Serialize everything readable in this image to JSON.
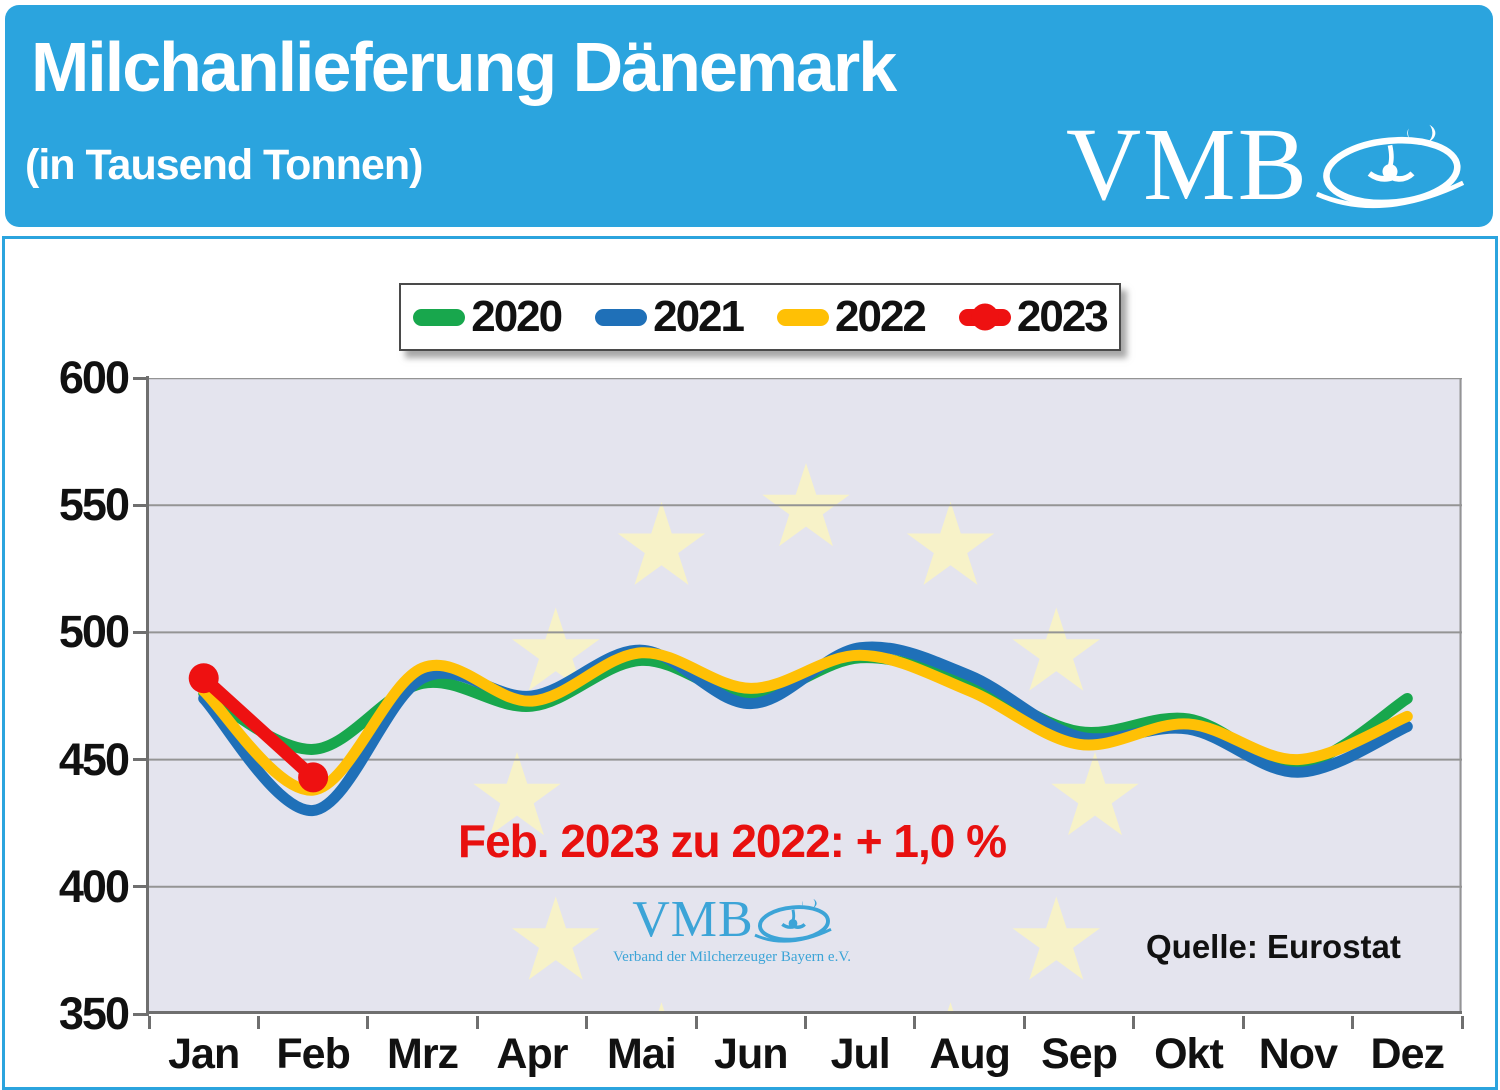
{
  "header": {
    "title": "Milchanlieferung Dänemark",
    "subtitle": "(in Tausend Tonnen)",
    "logo_text": "VMB",
    "bg_color": "#2BA4DE"
  },
  "legend": {
    "items": [
      {
        "label": "2020",
        "color": "#18A74D",
        "marker": false
      },
      {
        "label": "2021",
        "color": "#1F70B8",
        "marker": false
      },
      {
        "label": "2022",
        "color": "#FFC005",
        "marker": false
      },
      {
        "label": "2023",
        "color": "#EE1111",
        "marker": true
      }
    ]
  },
  "annotation": {
    "text": "Feb. 2023 zu 2022: + 1,0 %",
    "color": "#E8100F"
  },
  "source": {
    "label": "Quelle: Eurostat"
  },
  "watermark": {
    "logo_text": "VMB",
    "caption": "Verband der Milcherzeuger Bayern e.V."
  },
  "colors": {
    "plot_background": "#E4E4EE",
    "gridline": "#949494",
    "axis": "#6F6F6F",
    "eu_star": "#F7F2C8"
  },
  "chart_data": {
    "type": "line",
    "title": "Milchanlieferung Dänemark (in Tausend Tonnen)",
    "categories": [
      "Jan",
      "Feb",
      "Mrz",
      "Apr",
      "Mai",
      "Jun",
      "Jul",
      "Aug",
      "Sep",
      "Okt",
      "Nov",
      "Dez"
    ],
    "ylabel": "Tausend Tonnen",
    "ylim": [
      350,
      600
    ],
    "yticks": [
      600,
      550,
      500,
      450,
      400,
      350
    ],
    "grid": true,
    "legend_position": "top",
    "smooth": true,
    "series": [
      {
        "name": "2020",
        "color": "#18A74D",
        "markers": false,
        "values": [
          476,
          454,
          480,
          471,
          489,
          475,
          490,
          480,
          461,
          466,
          448,
          474
        ]
      },
      {
        "name": "2021",
        "color": "#1F70B8",
        "markers": false,
        "values": [
          474,
          430,
          482,
          475,
          493,
          472,
          494,
          483,
          459,
          462,
          445,
          463
        ]
      },
      {
        "name": "2022",
        "color": "#FFC005",
        "markers": false,
        "values": [
          477,
          438,
          486,
          473,
          492,
          478,
          491,
          477,
          456,
          464,
          450,
          467
        ]
      },
      {
        "name": "2023",
        "color": "#EE1111",
        "markers": true,
        "values": [
          482,
          443
        ]
      }
    ]
  }
}
